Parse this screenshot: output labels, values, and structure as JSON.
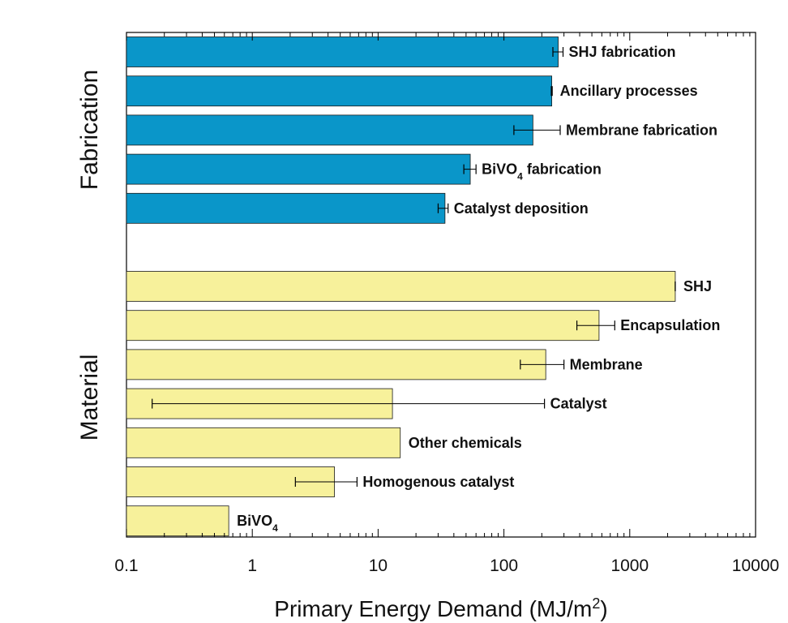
{
  "chart_data": {
    "type": "bar",
    "orientation": "horizontal",
    "x_scale": "log",
    "xlim": [
      0.1,
      10000
    ],
    "xticks": [
      {
        "value": 0.1,
        "label": "0.1"
      },
      {
        "value": 1,
        "label": "1"
      },
      {
        "value": 10,
        "label": "10"
      },
      {
        "value": 100,
        "label": "100"
      },
      {
        "value": 1000,
        "label": "1000"
      },
      {
        "value": 10000,
        "label": "10000"
      }
    ],
    "xlabel": {
      "main": "Primary Energy Demand (MJ/m",
      "sup": "2",
      "tail": ")"
    },
    "groups": [
      {
        "name": "Fabrication",
        "color": "#0a96c9",
        "items": [
          {
            "label": "SHJ fabrication",
            "value": 270,
            "err_low": 245,
            "err_high": 295
          },
          {
            "label": "Ancillary processes",
            "value": 240,
            "err_low": 238,
            "err_high": 242
          },
          {
            "label": "Membrane fabrication",
            "value": 170,
            "err_low": 120,
            "err_high": 280
          },
          {
            "label": "BiVO",
            "sub": "4",
            "label_tail": " fabrication",
            "value": 54,
            "err_low": 48,
            "err_high": 60
          },
          {
            "label": "Catalyst deposition",
            "value": 34,
            "err_low": 30,
            "err_high": 36
          }
        ]
      },
      {
        "name": "Material",
        "color": "#f7f19b",
        "items": [
          {
            "label": "SHJ",
            "value": 2300,
            "err_low": 2300,
            "err_high": 2300
          },
          {
            "label": "Encapsulation",
            "value": 570,
            "err_low": 380,
            "err_high": 760
          },
          {
            "label": "Membrane",
            "value": 215,
            "err_low": 135,
            "err_high": 300
          },
          {
            "label": "Catalyst",
            "value": 13,
            "err_low": 0.16,
            "err_high": 210
          },
          {
            "label": "Other chemicals",
            "value": 15
          },
          {
            "label": "Homogenous catalyst",
            "value": 4.5,
            "err_low": 2.2,
            "err_high": 6.8
          },
          {
            "label": "BiVO",
            "sub": "4",
            "label_tail": "",
            "value": 0.65
          }
        ]
      }
    ]
  }
}
